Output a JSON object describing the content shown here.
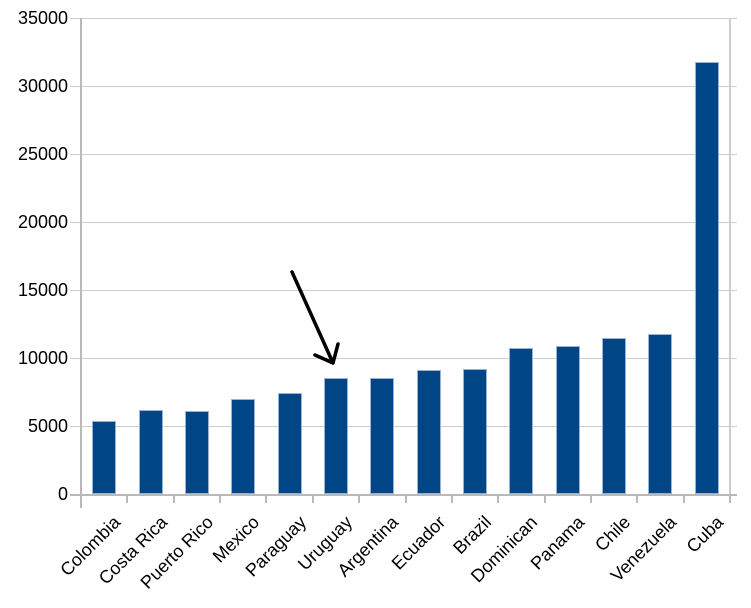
{
  "chart_data": {
    "type": "bar",
    "title": "",
    "xlabel": "",
    "ylabel": "",
    "legend": "none",
    "grid": true,
    "categories": [
      "Colombia",
      "Costa Rica",
      "Puerto Rico",
      "Mexico",
      "Paraguay",
      "Uruguay",
      "Argentina",
      "Ecuador",
      "Brazil",
      "Dominican",
      "Panama",
      "Chile",
      "Venezuela",
      "Cuba"
    ],
    "values": [
      5400,
      6200,
      6100,
      7000,
      7400,
      8500,
      8550,
      9100,
      9200,
      10700,
      10900,
      11500,
      11800,
      31800
    ],
    "ylim": [
      0,
      35000
    ],
    "yticks": [
      0,
      5000,
      10000,
      15000,
      20000,
      25000,
      30000,
      35000
    ],
    "colors": {
      "bar_fill": "#004586",
      "bar_border": "#9ab5d3",
      "gridline": "#cdcdcd",
      "axis": "#b9b9b9",
      "label_text": "#000000",
      "background": "#ffffff",
      "annotation": "#000000"
    },
    "annotation": {
      "type": "arrow",
      "target_category": "Uruguay",
      "from": {
        "x": 292,
        "y": 272
      },
      "tip": {
        "x": 333,
        "y": 363
      },
      "barbs": [
        [
          315,
          355
        ],
        [
          338,
          344
        ]
      ]
    }
  }
}
